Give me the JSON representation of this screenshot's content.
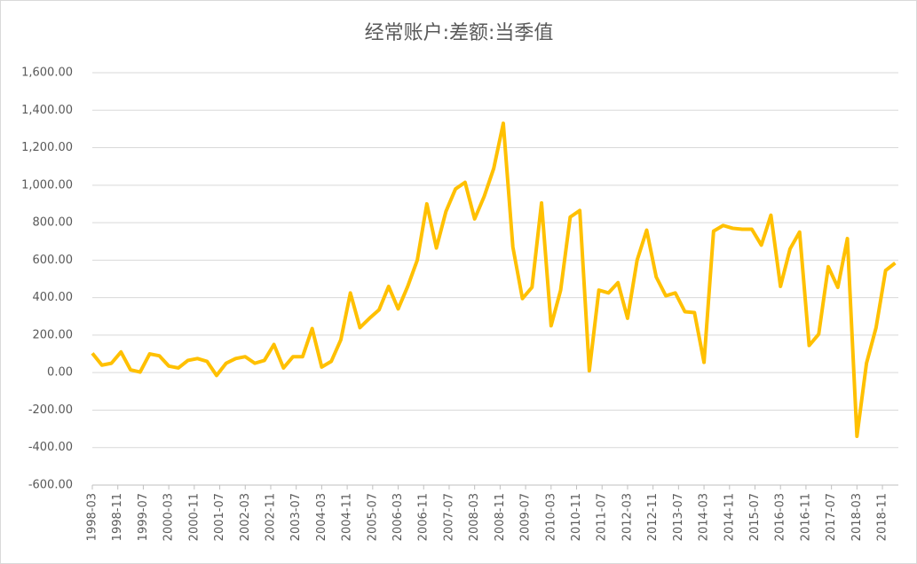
{
  "chart_data": {
    "type": "line",
    "title": "经常账户:差额:当季值",
    "x": [
      "1998-03",
      "1998-06",
      "1998-09",
      "1998-12",
      "1999-03",
      "1999-06",
      "1999-09",
      "1999-12",
      "2000-03",
      "2000-06",
      "2000-09",
      "2000-12",
      "2001-03",
      "2001-06",
      "2001-09",
      "2001-12",
      "2002-03",
      "2002-06",
      "2002-09",
      "2002-12",
      "2003-03",
      "2003-06",
      "2003-09",
      "2003-12",
      "2004-03",
      "2004-06",
      "2004-09",
      "2004-12",
      "2005-03",
      "2005-06",
      "2005-09",
      "2005-12",
      "2006-03",
      "2006-06",
      "2006-09",
      "2006-12",
      "2007-03",
      "2007-06",
      "2007-09",
      "2007-12",
      "2008-03",
      "2008-06",
      "2008-09",
      "2008-12",
      "2009-03",
      "2009-06",
      "2009-09",
      "2009-12",
      "2010-03",
      "2010-06",
      "2010-09",
      "2010-12",
      "2011-03",
      "2011-06",
      "2011-09",
      "2011-12",
      "2012-03",
      "2012-06",
      "2012-09",
      "2012-12",
      "2013-03",
      "2013-06",
      "2013-09",
      "2013-12",
      "2014-03",
      "2014-06",
      "2014-09",
      "2014-12",
      "2015-03",
      "2015-06",
      "2015-09",
      "2015-12",
      "2016-03",
      "2016-06",
      "2016-09",
      "2016-12",
      "2017-03",
      "2017-06",
      "2017-09",
      "2017-12",
      "2018-03",
      "2018-06",
      "2018-09",
      "2018-12",
      "2019-03"
    ],
    "series": [
      {
        "color": "#ffc000",
        "values": [
          103,
          40,
          50,
          110,
          15,
          3,
          100,
          90,
          35,
          25,
          65,
          75,
          60,
          -15,
          50,
          75,
          85,
          50,
          65,
          150,
          25,
          85,
          85,
          235,
          30,
          60,
          175,
          425,
          240,
          290,
          335,
          460,
          340,
          460,
          600,
          900,
          665,
          860,
          980,
          1015,
          820,
          940,
          1090,
          1330,
          670,
          395,
          455,
          905,
          250,
          440,
          830,
          865,
          10,
          440,
          425,
          480,
          290,
          600,
          760,
          510,
          410,
          425,
          325,
          320,
          55,
          755,
          785,
          770,
          765,
          765,
          680,
          840,
          460,
          660,
          750,
          145,
          205,
          565,
          455,
          715,
          -340,
          50,
          240,
          545,
          585
        ]
      }
    ],
    "xlim": [
      "1998-03",
      "2019-04"
    ],
    "xticks": [
      "1998-03",
      "1998-11",
      "1999-07",
      "2000-03",
      "2000-11",
      "2001-07",
      "2002-03",
      "2002-11",
      "2003-07",
      "2004-03",
      "2004-11",
      "2005-07",
      "2006-03",
      "2006-11",
      "2007-07",
      "2008-03",
      "2008-11",
      "2009-07",
      "2010-03",
      "2010-11",
      "2011-07",
      "2012-03",
      "2012-11",
      "2013-07",
      "2014-03",
      "2014-11",
      "2015-07",
      "2016-03",
      "2016-11",
      "2017-07",
      "2018-03",
      "2018-11"
    ],
    "ylim": [
      -600,
      1600
    ],
    "yticks": [
      {
        "value": -600,
        "label": "-600.00"
      },
      {
        "value": -400,
        "label": "-400.00"
      },
      {
        "value": -200,
        "label": "-200.00"
      },
      {
        "value": 0,
        "label": "0.00"
      },
      {
        "value": 200,
        "label": "200.00"
      },
      {
        "value": 400,
        "label": "400.00"
      },
      {
        "value": 600,
        "label": "600.00"
      },
      {
        "value": 800,
        "label": "800.00"
      },
      {
        "value": 1000,
        "label": "1,000.00"
      },
      {
        "value": 1200,
        "label": "1,200.00"
      },
      {
        "value": 1400,
        "label": "1,400.00"
      },
      {
        "value": 1600,
        "label": "1,600.00"
      }
    ],
    "grid": true
  }
}
